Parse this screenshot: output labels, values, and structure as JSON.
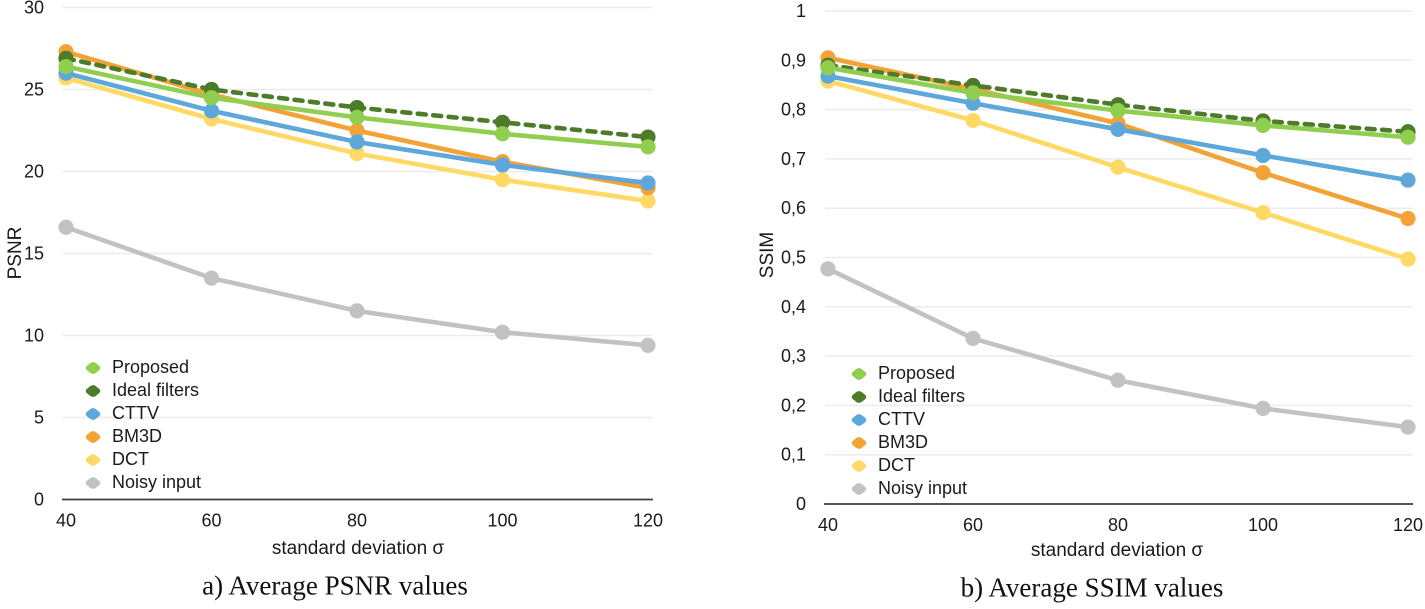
{
  "figure": {
    "background": "#ffffff",
    "gridline_color": "#ececec",
    "axis_line_color": "#3d3d3d",
    "text_color": "#1b1b1b"
  },
  "chart_data": [
    {
      "type": "line",
      "title": "a) Average PSNR values",
      "xlabel": "standard deviation σ",
      "ylabel": "PSNR",
      "x": [
        40,
        60,
        80,
        100,
        120
      ],
      "xtick_labels": [
        "40",
        "60",
        "80",
        "100",
        "120"
      ],
      "ylim": [
        0,
        30
      ],
      "yticks": [
        0,
        5,
        10,
        15,
        20,
        25,
        30
      ],
      "ytick_labels": [
        "0",
        "5",
        "10",
        "15",
        "20",
        "25",
        "30"
      ],
      "grid": "horizontal",
      "legend_position": "inside-lower-left",
      "series": [
        {
          "name": "Proposed",
          "color": "#8fce4e",
          "style": "solid",
          "values": [
            26.4,
            24.5,
            23.3,
            22.3,
            21.5
          ]
        },
        {
          "name": "Ideal filters",
          "color": "#4e7b29",
          "style": "dashed",
          "values": [
            26.9,
            25.0,
            23.9,
            23.0,
            22.1
          ]
        },
        {
          "name": "CTTV",
          "color": "#5da7da",
          "style": "solid",
          "values": [
            26.0,
            23.7,
            21.8,
            20.4,
            19.3
          ]
        },
        {
          "name": "BM3D",
          "color": "#f3a236",
          "style": "solid",
          "values": [
            27.3,
            24.7,
            22.5,
            20.6,
            19.0
          ]
        },
        {
          "name": "DCT",
          "color": "#ffd966",
          "style": "solid",
          "values": [
            25.7,
            23.2,
            21.1,
            19.5,
            18.2
          ]
        },
        {
          "name": "Noisy input",
          "color": "#c2c2c2",
          "style": "solid",
          "values": [
            16.6,
            13.5,
            11.5,
            10.2,
            9.4
          ]
        }
      ]
    },
    {
      "type": "line",
      "title": "b) Average SSIM values",
      "xlabel": "standard deviation σ",
      "ylabel": "SSIM",
      "x": [
        40,
        60,
        80,
        100,
        120
      ],
      "xtick_labels": [
        "40",
        "60",
        "80",
        "100",
        "120"
      ],
      "ylim": [
        0,
        1
      ],
      "yticks": [
        0,
        0.1,
        0.2,
        0.3,
        0.4,
        0.5,
        0.6,
        0.7,
        0.8,
        0.9,
        1
      ],
      "ytick_labels": [
        "0",
        "0,1",
        "0,2",
        "0,3",
        "0,4",
        "0,5",
        "0,6",
        "0,7",
        "0,8",
        "0,9",
        "1"
      ],
      "grid": "horizontal",
      "legend_position": "inside-lower-left",
      "series": [
        {
          "name": "Proposed",
          "color": "#8fce4e",
          "style": "solid",
          "values": [
            0.885,
            0.834,
            0.798,
            0.768,
            0.744
          ]
        },
        {
          "name": "Ideal filters",
          "color": "#4e7b29",
          "style": "dashed",
          "values": [
            0.89,
            0.849,
            0.81,
            0.777,
            0.755
          ]
        },
        {
          "name": "CTTV",
          "color": "#5da7da",
          "style": "solid",
          "values": [
            0.868,
            0.813,
            0.76,
            0.707,
            0.657
          ]
        },
        {
          "name": "BM3D",
          "color": "#f3a236",
          "style": "solid",
          "values": [
            0.905,
            0.842,
            0.772,
            0.672,
            0.579
          ]
        },
        {
          "name": "DCT",
          "color": "#ffd966",
          "style": "solid",
          "values": [
            0.858,
            0.778,
            0.683,
            0.591,
            0.497
          ]
        },
        {
          "name": "Noisy input",
          "color": "#c2c2c2",
          "style": "solid",
          "values": [
            0.477,
            0.336,
            0.251,
            0.194,
            0.156
          ]
        }
      ]
    }
  ]
}
